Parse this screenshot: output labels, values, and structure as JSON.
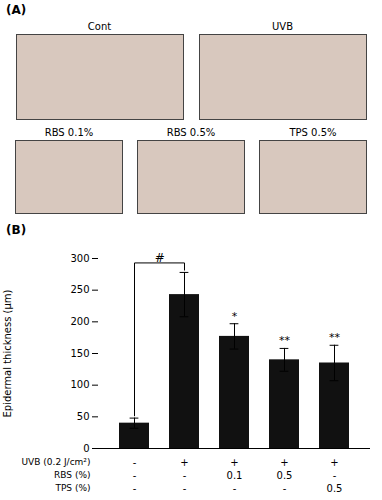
{
  "chart_data": [
    {
      "type": "image_panels",
      "title": "(A)",
      "categories": [
        [
          "Cont",
          "UVB"
        ],
        [
          "RBS 0.1%",
          "RBS 0.5%",
          "TPS 0.5%"
        ]
      ],
      "color": "#d8c8be"
    },
    {
      "type": "bar",
      "title": "(B)",
      "categories": [
        null,
        null,
        null,
        null,
        null
      ],
      "values": [
        40,
        243,
        177,
        140,
        135
      ],
      "errors": [
        8,
        35,
        20,
        18,
        28
      ],
      "color": "#111111",
      "ylabel": "Epidermal thickness (μm)",
      "ylim": [
        0,
        300
      ],
      "yticks": [
        0,
        50,
        100,
        150,
        200,
        250,
        300
      ],
      "grid": false,
      "tick_labels": "y",
      "significance_labels": [
        null,
        null,
        "*",
        "**",
        "**"
      ],
      "brackets": [
        {
          "from": 0,
          "to": 1,
          "label": "#"
        }
      ],
      "x_table": {
        "row_labels": [
          "UVB (0.2 J/cm²)",
          "RBS (%)",
          "TPS (%)"
        ],
        "rows": [
          [
            "-",
            "+",
            "+",
            "+",
            "+"
          ],
          [
            "-",
            "-",
            "0.1",
            "0.5",
            "-"
          ],
          [
            "-",
            "-",
            "-",
            "-",
            "0.5"
          ]
        ]
      }
    }
  ]
}
